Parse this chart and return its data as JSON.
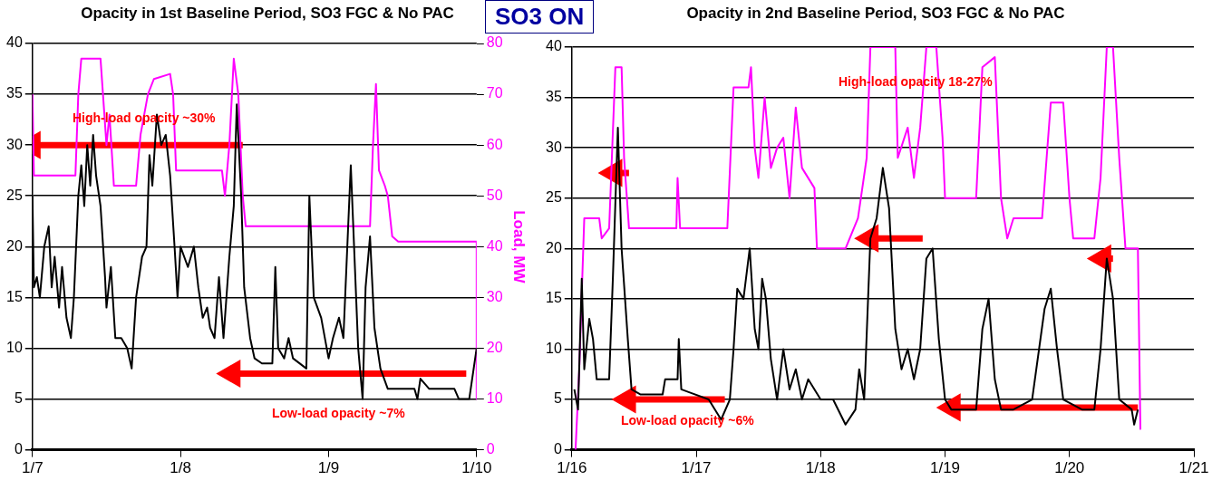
{
  "chart_data": [
    {
      "type": "line",
      "title": "Opacity in 1st Baseline Period, SO3 FGC & No PAC",
      "y2label": "Load, MW",
      "grid": "y",
      "legend": false,
      "marker": "none",
      "xlim": [
        "--01-07",
        "--01-10"
      ],
      "xticks": [
        {
          "value": "--01-07",
          "label": "1/7"
        },
        {
          "value": "--01-08",
          "label": "1/8"
        },
        {
          "value": "--01-09",
          "label": "1/9"
        },
        {
          "value": "--01-10",
          "label": "1/10"
        }
      ],
      "ylim": [
        0,
        40
      ],
      "yticks": [
        0,
        5,
        10,
        15,
        20,
        25,
        30,
        35,
        40
      ],
      "y2lim": [
        0,
        80
      ],
      "y2ticks": [
        0,
        10,
        20,
        30,
        40,
        50,
        60,
        70,
        80
      ],
      "annotations": [
        "High-load opacity ~30%",
        "Low-load opacity ~7%"
      ],
      "series": [
        {
          "color": "#000000",
          "x": [
            "--01-07T00:00",
            "--01-07T00:14",
            "--01-07T00:43",
            "--01-07T01:12",
            "--01-07T01:55",
            "--01-07T02:38",
            "--01-07T03:07",
            "--01-07T03:36",
            "--01-07T04:19",
            "--01-07T04:48",
            "--01-07T05:31",
            "--01-07T06:14",
            "--01-07T06:43",
            "--01-07T07:26",
            "--01-07T07:55",
            "--01-07T08:24",
            "--01-07T08:53",
            "--01-07T09:22",
            "--01-07T09:50",
            "--01-07T10:19",
            "--01-07T11:02",
            "--01-07T11:46",
            "--01-07T12:00",
            "--01-07T12:43",
            "--01-07T13:26",
            "--01-07T14:24",
            "--01-07T15:22",
            "--01-07T16:05",
            "--01-07T16:48",
            "--01-07T17:46",
            "--01-07T18:29",
            "--01-07T18:58",
            "--01-07T19:26",
            "--01-07T20:10",
            "--01-07T20:53",
            "--01-07T21:36",
            "--01-07T22:19",
            "--01-07T23:02",
            "--01-07T23:31",
            "--01-08T00:00",
            "--01-08T01:12",
            "--01-08T02:10",
            "--01-08T02:53",
            "--01-08T03:36",
            "--01-08T04:19",
            "--01-08T04:48",
            "--01-08T05:31",
            "--01-08T06:14",
            "--01-08T06:58",
            "--01-08T07:55",
            "--01-08T08:38",
            "--01-08T09:07",
            "--01-08T09:50",
            "--01-08T10:19",
            "--01-08T11:17",
            "--01-08T12:00",
            "--01-08T13:12",
            "--01-08T14:53",
            "--01-08T15:22",
            "--01-08T15:50",
            "--01-08T16:48",
            "--01-08T17:31",
            "--01-08T18:14",
            "--01-08T20:24",
            "--01-08T20:53",
            "--01-08T21:36",
            "--01-08T22:48",
            "--01-09T00:00",
            "--01-09T00:43",
            "--01-09T01:41",
            "--01-09T02:24",
            "--01-09T03:36",
            "--01-09T04:48",
            "--01-09T05:31",
            "--01-09T06:00",
            "--01-09T06:43",
            "--01-09T07:26",
            "--01-09T08:24",
            "--01-09T09:36",
            "--01-09T12:00",
            "--01-09T13:55",
            "--01-09T14:24",
            "--01-09T14:53",
            "--01-09T16:19",
            "--01-09T20:24",
            "--01-09T21:07",
            "--01-09T22:48",
            "--01-10T00:00"
          ],
          "values": [
            25,
            16,
            17,
            15,
            20,
            22,
            16,
            19,
            14,
            18,
            13,
            11,
            15,
            25,
            28,
            24,
            30,
            26,
            31,
            27,
            24,
            17,
            14,
            18,
            11,
            11,
            10,
            8,
            15,
            19,
            20,
            29,
            26,
            33,
            30,
            31,
            27,
            20,
            15,
            20,
            18,
            20,
            16,
            13,
            14,
            12,
            11,
            17,
            11,
            19,
            24,
            34,
            25,
            16,
            11,
            9,
            8.5,
            8.5,
            18,
            10,
            9,
            11,
            9,
            8,
            25,
            15,
            13,
            9,
            11,
            13,
            11,
            28,
            10,
            5,
            16,
            21,
            12,
            8,
            6,
            6,
            6,
            5,
            7,
            6,
            6,
            5,
            5,
            10
          ]
        },
        {
          "color": "#ff00ff",
          "axis": "y2",
          "x": [
            "--01-07T00:00",
            "--01-07T00:14",
            "--01-07T06:58",
            "--01-07T07:26",
            "--01-07T07:55",
            "--01-07T11:02",
            "--01-07T12:00",
            "--01-07T12:29",
            "--01-07T13:12",
            "--01-07T16:48",
            "--01-07T17:31",
            "--01-07T18:43",
            "--01-07T19:41",
            "--01-07T22:19",
            "--01-07T22:48",
            "--01-07T23:17",
            "--01-08T06:43",
            "--01-08T07:12",
            "--01-08T07:55",
            "--01-08T08:38",
            "--01-08T09:22",
            "--01-08T10:05",
            "--01-08T10:34",
            "--01-09T06:43",
            "--01-09T07:12",
            "--01-09T07:41",
            "--01-09T08:10",
            "--01-09T09:07",
            "--01-09T09:36",
            "--01-09T10:19",
            "--01-09T11:17",
            "--01-10T00:00",
            "--01-10T00:00"
          ],
          "values": [
            70,
            54,
            54,
            70,
            77,
            77,
            60,
            66,
            52,
            52,
            62,
            70,
            73,
            74,
            70,
            55,
            55,
            50,
            60,
            77,
            70,
            50,
            44,
            44,
            60,
            72,
            55,
            52,
            50,
            42,
            41,
            41,
            10
          ]
        },
        {
          "color": "#ff0000",
          "marker": "triangle",
          "x": [
            "--01-07T00:00",
            "--01-08T10:05"
          ],
          "values": [
            30,
            30
          ]
        },
        {
          "color": "#ff0000",
          "marker": "triangle",
          "x": [
            "--01-08T08:24",
            "--01-09T22:19"
          ],
          "values": [
            7.5,
            7.5
          ]
        }
      ]
    },
    {
      "type": "line",
      "title": "Opacity in 2nd Baseline Period, SO3 FGC & No PAC",
      "grid": "y",
      "legend": false,
      "marker": "none",
      "xlim": [
        "--01-16",
        "--01-21"
      ],
      "xticks": [
        {
          "value": "--01-16",
          "label": "1/16"
        },
        {
          "value": "--01-17",
          "label": "1/17"
        },
        {
          "value": "--01-18",
          "label": "1/18"
        },
        {
          "value": "--01-19",
          "label": "1/19"
        },
        {
          "value": "--01-20",
          "label": "1/20"
        },
        {
          "value": "--01-21",
          "label": "1/21"
        }
      ],
      "ylim": [
        0,
        40
      ],
      "yticks": [
        0,
        5,
        10,
        15,
        20,
        25,
        30,
        35,
        40
      ],
      "annotations": [
        "SO3 ON",
        "High-load opacity 18-27%",
        "Low-load opacity ~6%"
      ],
      "series": [
        {
          "color": "#000000",
          "x": [
            "--01-16T00:29",
            "--01-16T01:12",
            "--01-16T01:55",
            "--01-16T02:24",
            "--01-16T03:22",
            "--01-16T04:05",
            "--01-16T04:48",
            "--01-16T07:12",
            "--01-16T07:55",
            "--01-16T08:53",
            "--01-16T09:36",
            "--01-16T10:48",
            "--01-16T11:31",
            "--01-16T13:12",
            "--01-16T17:31",
            "--01-16T18:00",
            "--01-16T20:24",
            "--01-16T20:38",
            "--01-16T21:07",
            "--01-17T02:24",
            "--01-17T04:48",
            "--01-17T06:29",
            "--01-17T07:12",
            "--01-17T07:55",
            "--01-17T09:07",
            "--01-17T10:19",
            "--01-17T11:17",
            "--01-17T12:00",
            "--01-17T12:43",
            "--01-17T13:26",
            "--01-17T14:24",
            "--01-17T15:36",
            "--01-17T16:48",
            "--01-17T18:00",
            "--01-17T19:12",
            "--01-17T20:24",
            "--01-17T21:36",
            "--01-18T00:00",
            "--01-18T02:24",
            "--01-18T04:48",
            "--01-18T06:43",
            "--01-18T07:26",
            "--01-18T08:24",
            "--01-18T09:36",
            "--01-18T10:48",
            "--01-18T12:00",
            "--01-18T13:12",
            "--01-18T14:24",
            "--01-18T15:36",
            "--01-18T16:48",
            "--01-18T18:00",
            "--01-18T19:12",
            "--01-18T20:24",
            "--01-18T21:36",
            "--01-18T22:48",
            "--01-19T00:00",
            "--01-19T01:12",
            "--01-19T06:00",
            "--01-19T07:12",
            "--01-19T08:24",
            "--01-19T09:36",
            "--01-19T10:48",
            "--01-19T13:12",
            "--01-19T16:48",
            "--01-19T19:12",
            "--01-19T20:24",
            "--01-19T21:36",
            "--01-19T22:48",
            "--01-20T02:24",
            "--01-20T04:48",
            "--01-20T06:00",
            "--01-20T07:12",
            "--01-20T08:24",
            "--01-20T09:36",
            "--01-20T12:00",
            "--01-20T12:29",
            "--01-20T13:12"
          ],
          "values": [
            6,
            4,
            17,
            8,
            13,
            11,
            7,
            7,
            17,
            32,
            20,
            11,
            6,
            5.5,
            5.5,
            7,
            7,
            11,
            6,
            5,
            3,
            5,
            10,
            16,
            15,
            20,
            12,
            10,
            17,
            15,
            9,
            5,
            10,
            6,
            8,
            5,
            7,
            5,
            5,
            2.5,
            4,
            8,
            5,
            21,
            23,
            28,
            24,
            12,
            8,
            10,
            7,
            10,
            19,
            20,
            11,
            5,
            4,
            4,
            12,
            15,
            7,
            4,
            4,
            5,
            14,
            16,
            10,
            5,
            4,
            4,
            10,
            19,
            15,
            5,
            4,
            2.5,
            4
          ]
        },
        {
          "color": "#ff00ff",
          "x": [
            "--01-16T00:43",
            "--01-16T01:26",
            "--01-16T02:24",
            "--01-16T05:17",
            "--01-16T05:46",
            "--01-16T07:12",
            "--01-16T08:24",
            "--01-16T09:36",
            "--01-16T10:05",
            "--01-16T11:02",
            "--01-16T20:10",
            "--01-16T20:24",
            "--01-16T20:53",
            "--01-17T06:00",
            "--01-17T07:12",
            "--01-17T10:05",
            "--01-17T10:34",
            "--01-17T11:17",
            "--01-17T12:00",
            "--01-17T13:12",
            "--01-17T14:24",
            "--01-17T15:36",
            "--01-17T16:48",
            "--01-17T18:00",
            "--01-17T19:12",
            "--01-17T20:24",
            "--01-17T22:48",
            "--01-17T23:17",
            "--01-18T04:48",
            "--01-18T07:12",
            "--01-18T08:53",
            "--01-18T09:36",
            "--01-18T14:24",
            "--01-18T14:53",
            "--01-18T16:48",
            "--01-18T18:00",
            "--01-18T19:12",
            "--01-18T20:24",
            "--01-18T22:19",
            "--01-18T23:31",
            "--01-19T00:00",
            "--01-19T06:00",
            "--01-19T07:12",
            "--01-19T09:36",
            "--01-19T10:48",
            "--01-19T12:00",
            "--01-19T13:12",
            "--01-19T15:36",
            "--01-19T18:43",
            "--01-19T20:24",
            "--01-19T22:48",
            "--01-20T00:00",
            "--01-20T00:43",
            "--01-20T04:48",
            "--01-20T06:00",
            "--01-20T07:12",
            "--01-20T08:24",
            "--01-20T09:36",
            "--01-20T10:48",
            "--01-20T13:12",
            "--01-20T13:41"
          ],
          "values": [
            0,
            8,
            23,
            23,
            21,
            22,
            38,
            38,
            29,
            22,
            22,
            27,
            22,
            22,
            36,
            36,
            38,
            30,
            27,
            35,
            28,
            30,
            31,
            25,
            34,
            28,
            26,
            20,
            20,
            23,
            29,
            40,
            40,
            29,
            32,
            27,
            32,
            40,
            40,
            31,
            25,
            25,
            38,
            39,
            25,
            21,
            23,
            23,
            23,
            34.5,
            34.5,
            25,
            21,
            21,
            27,
            40,
            40,
            29,
            20,
            20,
            2
          ]
        },
        {
          "color": "#ff0000",
          "marker": "triangle",
          "x": [
            "--01-16T08:10",
            "--01-16T11:02"
          ],
          "values": [
            27.5,
            27.5
          ]
        },
        {
          "color": "#ff0000",
          "marker": "triangle",
          "x": [
            "--01-18T09:36",
            "--01-18T19:41"
          ],
          "values": [
            21,
            21
          ]
        },
        {
          "color": "#ff0000",
          "marker": "triangle",
          "x": [
            "--01-20T06:29",
            "--01-20T08:24"
          ],
          "values": [
            19,
            19
          ]
        },
        {
          "color": "#ff0000",
          "marker": "triangle",
          "x": [
            "--01-16T10:48",
            "--01-17T05:31"
          ],
          "values": [
            5,
            5
          ]
        },
        {
          "color": "#ff0000",
          "marker": "triangle",
          "x": [
            "--01-19T01:26",
            "--01-20T13:12"
          ],
          "values": [
            4.2,
            4.2
          ]
        }
      ]
    }
  ]
}
